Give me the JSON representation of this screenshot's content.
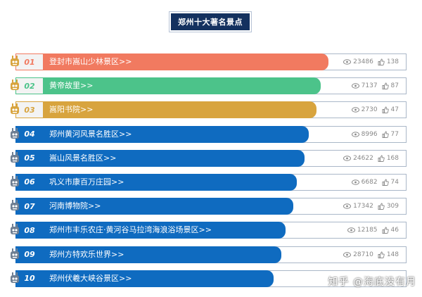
{
  "title": "郑州十大著名景点",
  "watermark": "知乎 @海底没有月",
  "colors": {
    "top1": "#f17a60",
    "top2": "#4cc38a",
    "top3": "#d8a43e",
    "rest": "#0f6bc0"
  },
  "items": [
    {
      "rank": "01",
      "name": "登封市嵩山少林景区>>",
      "views": "23486",
      "likes": "138",
      "tier": "top1",
      "bar_fraction": 0.8
    },
    {
      "rank": "02",
      "name": "黄帝故里>>",
      "views": "7137",
      "likes": "87",
      "tier": "top2",
      "bar_fraction": 0.78
    },
    {
      "rank": "03",
      "name": "嵩阳书院>>",
      "views": "2730",
      "likes": "47",
      "tier": "top3",
      "bar_fraction": 0.77
    },
    {
      "rank": "04",
      "name": "郑州黄河风景名胜区>>",
      "views": "8996",
      "likes": "77",
      "tier": "rest",
      "bar_fraction": 0.75
    },
    {
      "rank": "05",
      "name": "嵩山风景名胜区>>",
      "views": "24622",
      "likes": "168",
      "tier": "rest",
      "bar_fraction": 0.74
    },
    {
      "rank": "06",
      "name": "巩义市康百万庄园>>",
      "views": "6682",
      "likes": "74",
      "tier": "rest",
      "bar_fraction": 0.72
    },
    {
      "rank": "07",
      "name": "河南博物院>>",
      "views": "17342",
      "likes": "309",
      "tier": "rest",
      "bar_fraction": 0.71
    },
    {
      "rank": "08",
      "name": "郑州市丰乐农庄·黄河谷马拉湾海浪浴场景区>>",
      "views": "12185",
      "likes": "46",
      "tier": "rest",
      "bar_fraction": 0.69
    },
    {
      "rank": "09",
      "name": "郑州方特欢乐世界>>",
      "views": "28710",
      "likes": "148",
      "tier": "rest",
      "bar_fraction": 0.68
    },
    {
      "rank": "10",
      "name": "郑州伏羲大峡谷景区>>",
      "views": "",
      "likes": "",
      "tier": "rest",
      "bar_fraction": 0.66
    }
  ]
}
